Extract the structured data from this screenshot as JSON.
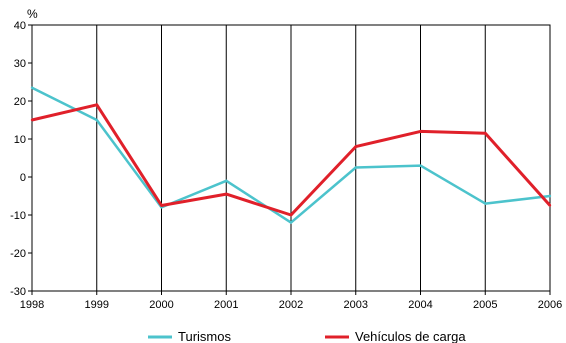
{
  "chart_data": {
    "type": "line",
    "unit": "%",
    "x": [
      "1998",
      "1999",
      "2000",
      "2001",
      "2002",
      "2003",
      "2004",
      "2005",
      "2006"
    ],
    "ylim": [
      -30,
      40
    ],
    "yticks": [
      "40",
      "30",
      "20",
      "10",
      "0",
      "-10",
      "-20",
      "-30"
    ],
    "series": [
      {
        "name": "Turismos",
        "color": "#4cc3cc",
        "values": [
          23.5,
          15,
          -8,
          -1,
          -12,
          2.5,
          3,
          -7,
          -5
        ]
      },
      {
        "name": "Vehículos de carga",
        "color": "#e0202a",
        "values": [
          15,
          19,
          -7.5,
          -4.5,
          -10,
          8,
          12,
          11.5,
          -7.5
        ]
      }
    ],
    "grid": "vertical",
    "legend": "bottom"
  }
}
